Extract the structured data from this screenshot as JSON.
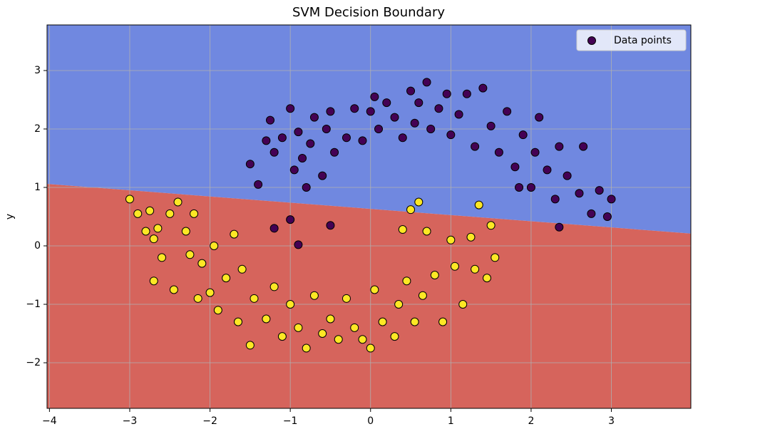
{
  "chart_data": {
    "type": "scatter",
    "title": "SVM Decision Boundary",
    "y_label": "y",
    "xlim": [
      -4.03,
      3.99
    ],
    "ylim": [
      -2.78,
      3.78
    ],
    "xticks": [
      {
        "value": -4,
        "label": "−4"
      },
      {
        "value": -3,
        "label": "−3"
      },
      {
        "value": -2,
        "label": "−2"
      },
      {
        "value": -1,
        "label": "−1"
      },
      0,
      1,
      2,
      3
    ],
    "yticks": [
      {
        "value": -2,
        "label": "−2"
      },
      {
        "value": -1,
        "label": "−1"
      },
      0,
      1,
      2,
      3
    ],
    "grid": true,
    "legend": "upper right",
    "boundary": {
      "x": [
        -4.03,
        3.99
      ],
      "y": [
        1.06,
        0.21
      ],
      "colors": [
        "#7088e0",
        "#d6645c"
      ]
    },
    "series": [
      {
        "name": "Data points",
        "colors": [
          "#440154",
          "#fde725"
        ],
        "x": [
          -1.5,
          -1.4,
          -1.3,
          -1.25,
          -1.2,
          -1.1,
          -1.0,
          -0.95,
          -0.9,
          -0.85,
          -0.8,
          -0.75,
          -0.7,
          -0.6,
          -0.55,
          -0.5,
          -0.45,
          -0.3,
          -0.2,
          -0.1,
          0.0,
          0.05,
          0.1,
          0.2,
          0.3,
          0.4,
          0.5,
          0.55,
          0.6,
          0.7,
          0.75,
          0.85,
          0.95,
          1.0,
          1.1,
          1.2,
          1.3,
          1.4,
          1.5,
          1.6,
          1.7,
          1.8,
          1.9,
          2.0,
          2.05,
          2.1,
          2.2,
          2.3,
          2.35,
          2.45,
          2.6,
          2.65,
          2.75,
          2.85,
          2.95,
          3.0,
          -1.0,
          -1.2,
          -0.9,
          -0.5,
          2.35,
          1.85,
          -3.0,
          -2.9,
          -2.8,
          -2.75,
          -2.7,
          -2.65,
          -2.6,
          -2.5,
          -2.45,
          -2.4,
          -2.3,
          -2.25,
          -2.2,
          -2.15,
          -2.1,
          -2.0,
          -1.95,
          -1.9,
          -1.8,
          -1.7,
          -1.65,
          -1.6,
          -1.5,
          -1.45,
          -1.3,
          -1.2,
          -1.1,
          -1.0,
          -0.9,
          -0.8,
          -0.7,
          -0.6,
          -0.5,
          -0.4,
          -0.3,
          -0.2,
          -0.1,
          0.0,
          0.05,
          0.15,
          0.3,
          0.35,
          0.45,
          0.55,
          0.6,
          0.65,
          0.7,
          0.8,
          0.9,
          1.0,
          1.05,
          1.15,
          1.25,
          1.3,
          1.35,
          1.45,
          1.55,
          0.5,
          0.4,
          1.5,
          -2.7
        ],
        "values": [
          1.4,
          1.05,
          1.8,
          2.15,
          1.6,
          1.85,
          2.35,
          1.3,
          1.95,
          1.5,
          1.0,
          1.75,
          2.2,
          1.2,
          2.0,
          2.3,
          1.6,
          1.85,
          2.35,
          1.8,
          2.3,
          2.55,
          2.0,
          2.45,
          2.2,
          1.85,
          2.65,
          2.1,
          2.45,
          2.8,
          2.0,
          2.35,
          2.6,
          1.9,
          2.25,
          2.6,
          1.7,
          2.7,
          2.05,
          1.6,
          2.3,
          1.35,
          1.9,
          1.0,
          1.6,
          2.2,
          1.3,
          0.8,
          1.7,
          1.2,
          0.9,
          1.7,
          0.55,
          0.95,
          0.5,
          0.8,
          0.45,
          0.3,
          0.02,
          0.35,
          0.32,
          1.0,
          0.8,
          0.55,
          0.25,
          0.6,
          -0.6,
          0.3,
          -0.2,
          0.55,
          -0.75,
          0.75,
          0.25,
          -0.15,
          0.55,
          -0.9,
          -0.3,
          -0.8,
          0.0,
          -1.1,
          -0.55,
          0.2,
          -1.3,
          -0.4,
          -1.7,
          -0.9,
          -1.25,
          -0.7,
          -1.55,
          -1.0,
          -1.4,
          -1.75,
          -0.85,
          -1.5,
          -1.25,
          -1.6,
          -0.9,
          -1.4,
          -1.6,
          -1.75,
          -0.75,
          -1.3,
          -1.55,
          -1.0,
          -0.6,
          -1.3,
          0.75,
          -0.85,
          0.25,
          -0.5,
          -1.3,
          0.1,
          -0.35,
          -1.0,
          0.15,
          -0.4,
          0.7,
          -0.55,
          -0.2,
          0.62,
          0.28,
          0.35,
          0.12
        ],
        "classes": [
          0,
          0,
          0,
          0,
          0,
          0,
          0,
          0,
          0,
          0,
          0,
          0,
          0,
          0,
          0,
          0,
          0,
          0,
          0,
          0,
          0,
          0,
          0,
          0,
          0,
          0,
          0,
          0,
          0,
          0,
          0,
          0,
          0,
          0,
          0,
          0,
          0,
          0,
          0,
          0,
          0,
          0,
          0,
          0,
          0,
          0,
          0,
          0,
          0,
          0,
          0,
          0,
          0,
          0,
          0,
          0,
          0,
          0,
          0,
          0,
          0,
          0,
          1,
          1,
          1,
          1,
          1,
          1,
          1,
          1,
          1,
          1,
          1,
          1,
          1,
          1,
          1,
          1,
          1,
          1,
          1,
          1,
          1,
          1,
          1,
          1,
          1,
          1,
          1,
          1,
          1,
          1,
          1,
          1,
          1,
          1,
          1,
          1,
          1,
          1,
          1,
          1,
          1,
          1,
          1,
          1,
          1,
          1,
          1,
          1,
          1,
          1,
          1,
          1,
          1,
          1,
          1,
          1,
          1,
          1,
          1,
          1,
          1
        ]
      }
    ]
  }
}
